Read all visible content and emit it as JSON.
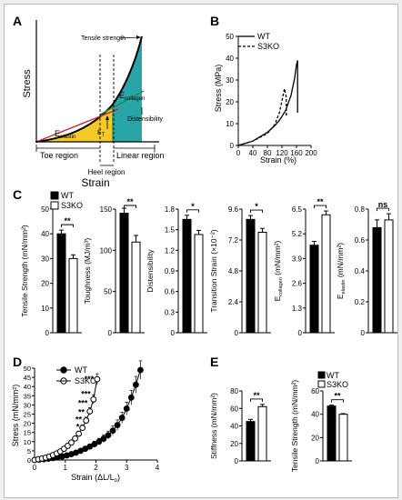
{
  "panel_letters": {
    "a": "A",
    "b": "B",
    "c": "C",
    "d": "D",
    "e": "E"
  },
  "colors": {
    "wt": "#000000",
    "s3ko": "#ffffff",
    "toe_fill": "#f5c928",
    "linear_fill": "#2aa5a7",
    "elastin_line": "#c62828",
    "collagen_line": "#1b8a5a",
    "outline": "#000000"
  },
  "chart_data": [
    {
      "id": "A",
      "type": "area",
      "xlabel": "Strain",
      "ylabel": "Stress",
      "annotations": {
        "tensile_strength": "Tensile strength",
        "e_collagen_main": "E",
        "e_collagen_sub": "collagen",
        "e_elastin_main": "E",
        "e_elastin_sub": "elastin",
        "distensibility": "Distensibility",
        "eps_t_main": "ε",
        "eps_t_sub": "T",
        "toe_region": "Toe region",
        "linear_region": "Linear region",
        "heel_region": "Heel region"
      }
    },
    {
      "id": "B",
      "type": "line",
      "xlabel": "Strain (%)",
      "ylabel": "Stress (MPa)",
      "xlim": [
        0,
        200
      ],
      "ylim": [
        0,
        50
      ],
      "xticks": [
        "0",
        "40",
        "80",
        "120",
        "160",
        "200"
      ],
      "yticks": [
        "0",
        "10",
        "20",
        "30",
        "40",
        "50"
      ],
      "legend": "top-left",
      "series": [
        {
          "name": "WT",
          "style": "solid",
          "points": [
            [
              0,
              0
            ],
            [
              40,
              2
            ],
            [
              80,
              6
            ],
            [
              100,
              9
            ],
            [
              115,
              12
            ],
            [
              130,
              16
            ],
            [
              145,
              23
            ],
            [
              155,
              31
            ],
            [
              160,
              37
            ],
            [
              163,
              39
            ],
            [
              163,
              15
            ]
          ]
        },
        {
          "name": "S3KO",
          "style": "dashed",
          "points": [
            [
              0,
              0
            ],
            [
              40,
              2
            ],
            [
              80,
              5.5
            ],
            [
              100,
              9.5
            ],
            [
              113,
              15
            ],
            [
              122,
              22
            ],
            [
              127,
              26
            ],
            [
              132,
              22
            ],
            [
              132,
              13
            ]
          ]
        }
      ]
    },
    {
      "id": "C",
      "type": "bar",
      "legend": "top-left",
      "legend_entries": [
        "WT",
        "S3KO"
      ],
      "subplots": [
        {
          "ylabel": "Tensile Strength (mN/mm²)",
          "ylim": [
            0,
            50
          ],
          "yticks": [
            "0",
            "10",
            "20",
            "30",
            "40",
            "50"
          ],
          "values": {
            "WT": 40,
            "S3KO": 30
          },
          "err": {
            "WT": 1.5,
            "S3KO": 1.5
          },
          "sig": "**"
        },
        {
          "ylabel": "Toughness (MJ/m³)",
          "ylim": [
            0,
            150
          ],
          "yticks": [
            "0",
            "50",
            "100",
            "150"
          ],
          "values": {
            "WT": 145,
            "S3KO": 110
          },
          "err": {
            "WT": 6,
            "S3KO": 8
          },
          "sig": "**"
        },
        {
          "ylabel": "Distensibility",
          "ylim": [
            0,
            1.8
          ],
          "yticks": [
            "0",
            "0.3",
            "0.6",
            "0.9",
            "1.2",
            "1.5",
            "1.8"
          ],
          "values": {
            "WT": 1.65,
            "S3KO": 1.43
          },
          "err": {
            "WT": 0.06,
            "S3KO": 0.06
          },
          "sig": "*"
        },
        {
          "ylabel": "Transition Strain (×10⁻²)",
          "ylim": [
            0,
            9.6
          ],
          "yticks": [
            "0",
            "2.4",
            "4.8",
            "7.2",
            "9.6"
          ],
          "values": {
            "WT": 8.8,
            "S3KO": 7.8
          },
          "err": {
            "WT": 0.3,
            "S3KO": 0.3
          },
          "sig": "*"
        },
        {
          "ylabel_main": "E",
          "ylabel_sub": "collagen",
          "ylabel_rest": " (mN/mm²)",
          "ylim": [
            0,
            6.5
          ],
          "yticks": [
            "0",
            "1.3",
            "2.6",
            "3.9",
            "5.2",
            "6.5"
          ],
          "values": {
            "WT": 4.6,
            "S3KO": 6.2
          },
          "err": {
            "WT": 0.2,
            "S3KO": 0.2
          },
          "sig": "**"
        },
        {
          "ylabel_main": "E",
          "ylabel_sub": "elastin",
          "ylabel_rest": " (mN/mm²)",
          "ylim": [
            0,
            0.8
          ],
          "yticks": [
            "0",
            "0.2",
            "0.4",
            "0.6",
            "0.8"
          ],
          "values": {
            "WT": 0.68,
            "S3KO": 0.73
          },
          "err": {
            "WT": 0.05,
            "S3KO": 0.04
          },
          "sig": "ns"
        }
      ]
    },
    {
      "id": "D",
      "type": "line",
      "xlabel_main": "Strain (ΔL/L",
      "xlabel_sub": "o",
      "xlabel_end": ")",
      "ylabel": "Stress (mN/mm²)",
      "xlim": [
        0,
        4
      ],
      "ylim": [
        0,
        50
      ],
      "xticks": [
        "0",
        "1",
        "2",
        "3",
        "4"
      ],
      "yticks": [
        "0",
        "5",
        "10",
        "15",
        "20",
        "25",
        "30",
        "35",
        "40",
        "45",
        "50"
      ],
      "legend": "top-left",
      "series": [
        {
          "name": "WT",
          "marker": "filled",
          "x": [
            0,
            0.15,
            0.3,
            0.45,
            0.6,
            0.75,
            0.9,
            1.05,
            1.2,
            1.35,
            1.5,
            1.65,
            1.8,
            1.95,
            2.1,
            2.25,
            2.4,
            2.55,
            2.7,
            2.85,
            3.0,
            3.15,
            3.3,
            3.45
          ],
          "y": [
            0,
            0.2,
            0.4,
            0.7,
            1.0,
            1.4,
            1.9,
            2.5,
            3.2,
            4.0,
            5.0,
            6.1,
            7.3,
            8.6,
            10,
            11.6,
            13.5,
            16,
            19,
            23,
            28,
            34,
            41,
            49
          ],
          "err": [
            0,
            0.2,
            0.3,
            0.4,
            0.5,
            0.6,
            0.7,
            0.8,
            0.9,
            1,
            1.1,
            1.2,
            1.4,
            1.6,
            1.8,
            2,
            2.2,
            2.5,
            2.8,
            3,
            3.5,
            4,
            4.5,
            5
          ]
        },
        {
          "name": "S3KO",
          "marker": "open",
          "x": [
            0,
            0.12,
            0.24,
            0.36,
            0.48,
            0.6,
            0.72,
            0.84,
            0.96,
            1.08,
            1.2,
            1.32,
            1.44,
            1.56,
            1.68,
            1.8,
            1.92,
            2.04
          ],
          "y": [
            0,
            0.4,
            0.8,
            1.3,
            1.9,
            2.7,
            3.6,
            4.7,
            6.1,
            7.7,
            9.5,
            11.7,
            14.3,
            17.5,
            21.5,
            26.5,
            33,
            44
          ],
          "err": [
            0,
            0.2,
            0.3,
            0.4,
            0.5,
            0.6,
            0.7,
            0.8,
            0.9,
            1,
            1.1,
            1.2,
            1.4,
            1.6,
            1.8,
            2,
            2.5,
            3
          ]
        }
      ],
      "significance": [
        {
          "label": "***",
          "x": 2.05,
          "y": 44
        },
        {
          "label": "***",
          "x": 1.95,
          "y": 36
        },
        {
          "label": "***",
          "x": 1.85,
          "y": 31
        },
        {
          "label": "**",
          "x": 1.75,
          "y": 26
        },
        {
          "label": "**",
          "x": 1.66,
          "y": 22
        },
        {
          "label": "*",
          "x": 1.58,
          "y": 18
        }
      ]
    },
    {
      "id": "E",
      "type": "bar",
      "legend": "top-right",
      "legend_entries": [
        "WT",
        "S3KO"
      ],
      "subplots": [
        {
          "ylabel": "Stiffness (mN/mm²)",
          "ylim": [
            0,
            80
          ],
          "yticks": [
            "0",
            "20",
            "40",
            "60",
            "80"
          ],
          "values": {
            "WT": 45,
            "S3KO": 62
          },
          "err": {
            "WT": 2.5,
            "S3KO": 2.5
          },
          "sig": "**"
        },
        {
          "ylabel": "Tensile Strength (mN/mm²)",
          "ylim": [
            0,
            60
          ],
          "yticks": [
            "0",
            "20",
            "40",
            "60"
          ],
          "values": {
            "WT": 47,
            "S3KO": 40
          },
          "err": {
            "WT": 0.8,
            "S3KO": 0.5
          },
          "sig": "**"
        }
      ]
    }
  ]
}
